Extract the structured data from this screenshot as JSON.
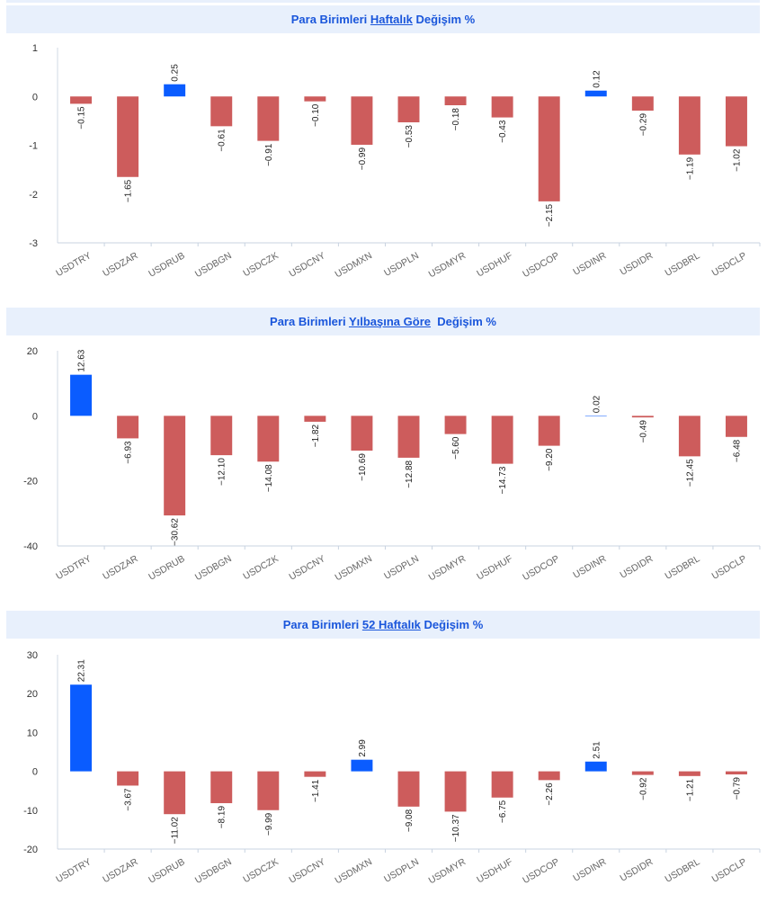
{
  "colors": {
    "positive": "#0a5cff",
    "negative": "#cd5c5c",
    "title_text": "#1a56db",
    "title_bg": "#e8f0fc"
  },
  "categories": [
    "USDTRY",
    "USDZAR",
    "USDRUB",
    "USDBGN",
    "USDCZK",
    "USDCNY",
    "USDMXN",
    "USDPLN",
    "USDMYR",
    "USDHUF",
    "USDCOP",
    "USDINR",
    "USDIDR",
    "USDBRL",
    "USDCLP"
  ],
  "chart_data": [
    {
      "type": "bar",
      "title": {
        "prefix": "Para Birimleri ",
        "link": "Haftalık",
        "suffix": " Değişim %"
      },
      "ylim": [
        -3,
        1
      ],
      "yticks": [
        1,
        0,
        -1,
        -2,
        -3
      ],
      "values": [
        -0.15,
        -1.65,
        0.25,
        -0.61,
        -0.91,
        -0.1,
        -0.99,
        -0.53,
        -0.18,
        -0.43,
        -2.15,
        0.12,
        -0.29,
        -1.19,
        -1.02
      ],
      "labels": [
        "-0.15",
        "-1.65",
        "0.25",
        "-0.61",
        "-0.91",
        "-0.10",
        "-0.99",
        "-0.53",
        "-0.18",
        "-0.43",
        "-2.15",
        "0.12",
        "-0.29",
        "-1.19",
        "-1.02"
      ]
    },
    {
      "type": "bar",
      "title": {
        "prefix": "Para Birimleri ",
        "link": "Yılbaşına Göre",
        "suffix": "  Değişim %"
      },
      "ylim": [
        -40,
        20
      ],
      "yticks": [
        20,
        0,
        -20,
        -40
      ],
      "values": [
        12.63,
        -6.93,
        -30.62,
        -12.1,
        -14.08,
        -1.82,
        -10.69,
        -12.88,
        -5.6,
        -14.73,
        -9.2,
        0.02,
        -0.49,
        -12.45,
        -6.48
      ],
      "labels": [
        "12.63",
        "-6.93",
        "-30.62",
        "-12.10",
        "-14.08",
        "-1.82",
        "-10.69",
        "-12.88",
        "-5.60",
        "-14.73",
        "-9.20",
        "0.02",
        "-0.49",
        "-12.45",
        "-6.48"
      ]
    },
    {
      "type": "bar",
      "title": {
        "prefix": "Para Birimleri ",
        "link": "52 Haftalık",
        "suffix": " Değişim %"
      },
      "ylim": [
        -20,
        30
      ],
      "yticks": [
        30,
        20,
        10,
        0,
        -10,
        -20
      ],
      "values": [
        22.31,
        -3.67,
        -11.02,
        -8.19,
        -9.99,
        -1.41,
        2.99,
        -9.08,
        -10.37,
        -6.75,
        -2.26,
        2.51,
        -0.92,
        -1.21,
        -0.79
      ],
      "labels": [
        "22.31",
        "-3.67",
        "-11.02",
        "-8.19",
        "-9.99",
        "-1.41",
        "2.99",
        "-9.08",
        "-10.37",
        "-6.75",
        "-2.26",
        "2.51",
        "-0.92",
        "-1.21",
        "-0.79"
      ]
    }
  ]
}
